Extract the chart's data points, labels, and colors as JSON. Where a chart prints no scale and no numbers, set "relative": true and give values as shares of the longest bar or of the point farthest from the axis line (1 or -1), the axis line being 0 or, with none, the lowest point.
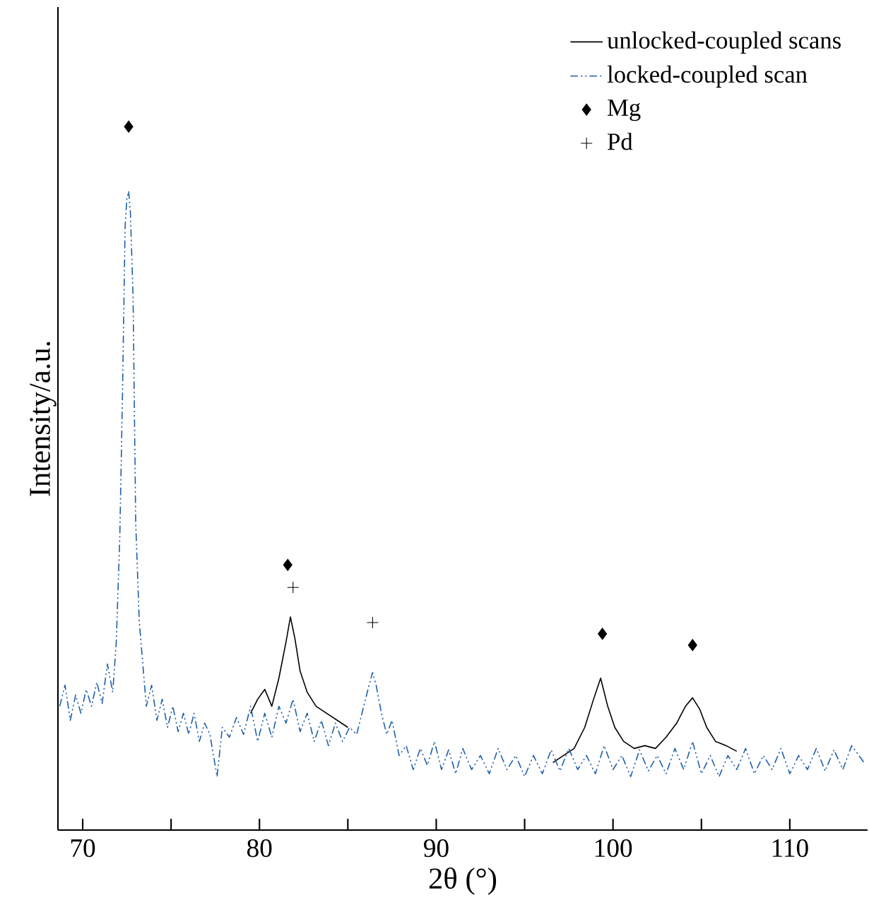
{
  "chart_data": {
    "type": "line",
    "relative": true,
    "xlabel": "2θ (°)",
    "ylabel": "Intensity/a.u.",
    "xlim": [
      68.6,
      114.4
    ],
    "xticks": [
      70,
      {
        "value": 75,
        "label": null
      },
      80,
      {
        "value": 85,
        "label": null
      },
      90,
      {
        "value": 95,
        "label": null
      },
      100,
      {
        "value": 105,
        "label": null
      },
      110
    ],
    "tick_labels": "x",
    "grid": false,
    "legend": "top right",
    "series": [
      {
        "name": "unlocked-coupled scans",
        "color": "#000000",
        "line_style": "solid",
        "x": [
          79.5,
          79.9,
          80.3,
          80.7,
          81.1,
          81.5,
          81.75,
          82.0,
          82.3,
          82.7,
          83.2,
          83.8,
          84.4,
          85.0,
          90,
          96.6,
          97.2,
          97.8,
          98.4,
          98.9,
          99.3,
          99.7,
          100.1,
          100.6,
          101.2,
          101.8,
          102.4,
          103.0,
          103.6,
          104.1,
          104.5,
          104.9,
          105.3,
          105.8,
          106.4,
          107.0
        ],
        "values": [
          0.166,
          0.186,
          0.2,
          0.176,
          0.216,
          0.267,
          0.303,
          0.273,
          0.226,
          0.196,
          0.176,
          0.166,
          0.156,
          0.146,
          null,
          0.096,
          0.106,
          0.116,
          0.146,
          0.186,
          0.216,
          0.176,
          0.146,
          0.126,
          0.116,
          0.12,
          0.116,
          0.132,
          0.152,
          0.176,
          0.188,
          0.172,
          0.146,
          0.126,
          0.12,
          0.112
        ]
      },
      {
        "name": "locked-coupled scan",
        "color": "#1f5fa8",
        "line_style": "dashed",
        "x": [
          68.7,
          69.0,
          69.3,
          69.6,
          69.9,
          70.2,
          70.5,
          70.8,
          71.1,
          71.4,
          71.7,
          71.9,
          72.1,
          72.25,
          72.4,
          72.5,
          72.6,
          72.7,
          72.85,
          73.0,
          73.2,
          73.4,
          73.6,
          73.9,
          74.2,
          74.5,
          74.8,
          75.1,
          75.4,
          75.7,
          76.0,
          76.3,
          76.6,
          76.9,
          77.2,
          77.6,
          77.9,
          78.3,
          78.7,
          79.1,
          79.5,
          79.9,
          80.3,
          80.7,
          81.1,
          81.5,
          81.9,
          82.3,
          82.7,
          83.1,
          83.5,
          83.9,
          84.3,
          84.7,
          85.1,
          85.5,
          85.9,
          86.2,
          86.4,
          86.6,
          86.9,
          87.2,
          87.5,
          87.9,
          88.3,
          88.7,
          89.1,
          89.5,
          89.9,
          90.3,
          90.7,
          91.1,
          91.5,
          92,
          92.5,
          93,
          93.5,
          94,
          94.5,
          95,
          95.5,
          96,
          96.5,
          97,
          97.5,
          98,
          98.5,
          99,
          99.5,
          100,
          100.5,
          101,
          101.5,
          102,
          102.5,
          103,
          103.5,
          104,
          104.5,
          105,
          105.5,
          106,
          106.5,
          107,
          107.5,
          108,
          108.5,
          109,
          109.5,
          110,
          110.5,
          111,
          111.5,
          112,
          112.5,
          113,
          113.5,
          114.2
        ],
        "values": [
          0.176,
          0.206,
          0.156,
          0.192,
          0.166,
          0.2,
          0.176,
          0.21,
          0.18,
          0.236,
          0.196,
          0.267,
          0.417,
          0.617,
          0.858,
          0.898,
          0.908,
          0.878,
          0.758,
          0.437,
          0.297,
          0.236,
          0.176,
          0.206,
          0.156,
          0.186,
          0.146,
          0.176,
          0.14,
          0.166,
          0.136,
          0.166,
          0.126,
          0.152,
          0.136,
          0.076,
          0.146,
          0.132,
          0.16,
          0.136,
          0.176,
          0.126,
          0.166,
          0.132,
          0.176,
          0.152,
          0.186,
          0.14,
          0.166,
          0.126,
          0.156,
          0.12,
          0.152,
          0.126,
          0.146,
          0.136,
          0.176,
          0.206,
          0.224,
          0.206,
          0.166,
          0.136,
          0.156,
          0.106,
          0.12,
          0.086,
          0.116,
          0.092,
          0.126,
          0.086,
          0.114,
          0.08,
          0.116,
          0.086,
          0.106,
          0.08,
          0.116,
          0.086,
          0.106,
          0.076,
          0.106,
          0.08,
          0.114,
          0.084,
          0.116,
          0.086,
          0.106,
          0.08,
          0.12,
          0.086,
          0.106,
          0.076,
          0.114,
          0.084,
          0.106,
          0.08,
          0.116,
          0.086,
          0.126,
          0.08,
          0.106,
          0.076,
          0.106,
          0.086,
          0.116,
          0.08,
          0.106,
          0.086,
          0.116,
          0.08,
          0.106,
          0.086,
          0.116,
          0.084,
          0.114,
          0.086,
          0.12,
          0.096
        ]
      },
      {
        "name": "Mg",
        "type": "scatter",
        "marker": "diamond",
        "color": "#000000",
        "x": [
          72.6,
          81.6,
          99.4,
          104.5
        ],
        "values": [
          1.0,
          0.377,
          0.279,
          0.263
        ]
      },
      {
        "name": "Pd",
        "type": "scatter",
        "marker": "cross",
        "color": "#000000",
        "x": [
          81.9,
          86.4
        ],
        "values": [
          0.345,
          0.295
        ]
      }
    ]
  }
}
